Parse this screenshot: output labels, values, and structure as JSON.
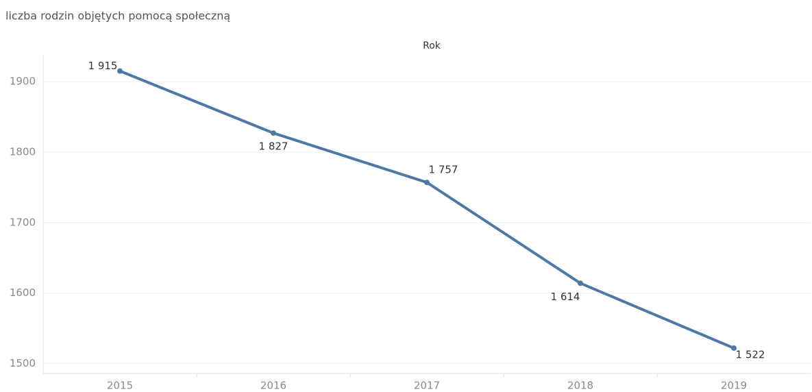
{
  "chart_data": {
    "type": "line",
    "title": "liczba rodzin objętych pomocą społeczną",
    "x_label": "Rok",
    "categories": [
      "2015",
      "2016",
      "2017",
      "2018",
      "2019"
    ],
    "series": [
      {
        "name": "liczba rodzin objętych pomocą społeczną",
        "color": "#4e79a7",
        "values": [
          1915,
          1827,
          1757,
          1614,
          1522
        ],
        "value_labels": [
          "1 915",
          "1 827",
          "1 757",
          "1 614",
          "1 522"
        ]
      }
    ],
    "ylim": [
      1486,
      1938
    ],
    "yticks": [
      1500,
      1600,
      1700,
      1800,
      1900
    ],
    "grid": true
  }
}
